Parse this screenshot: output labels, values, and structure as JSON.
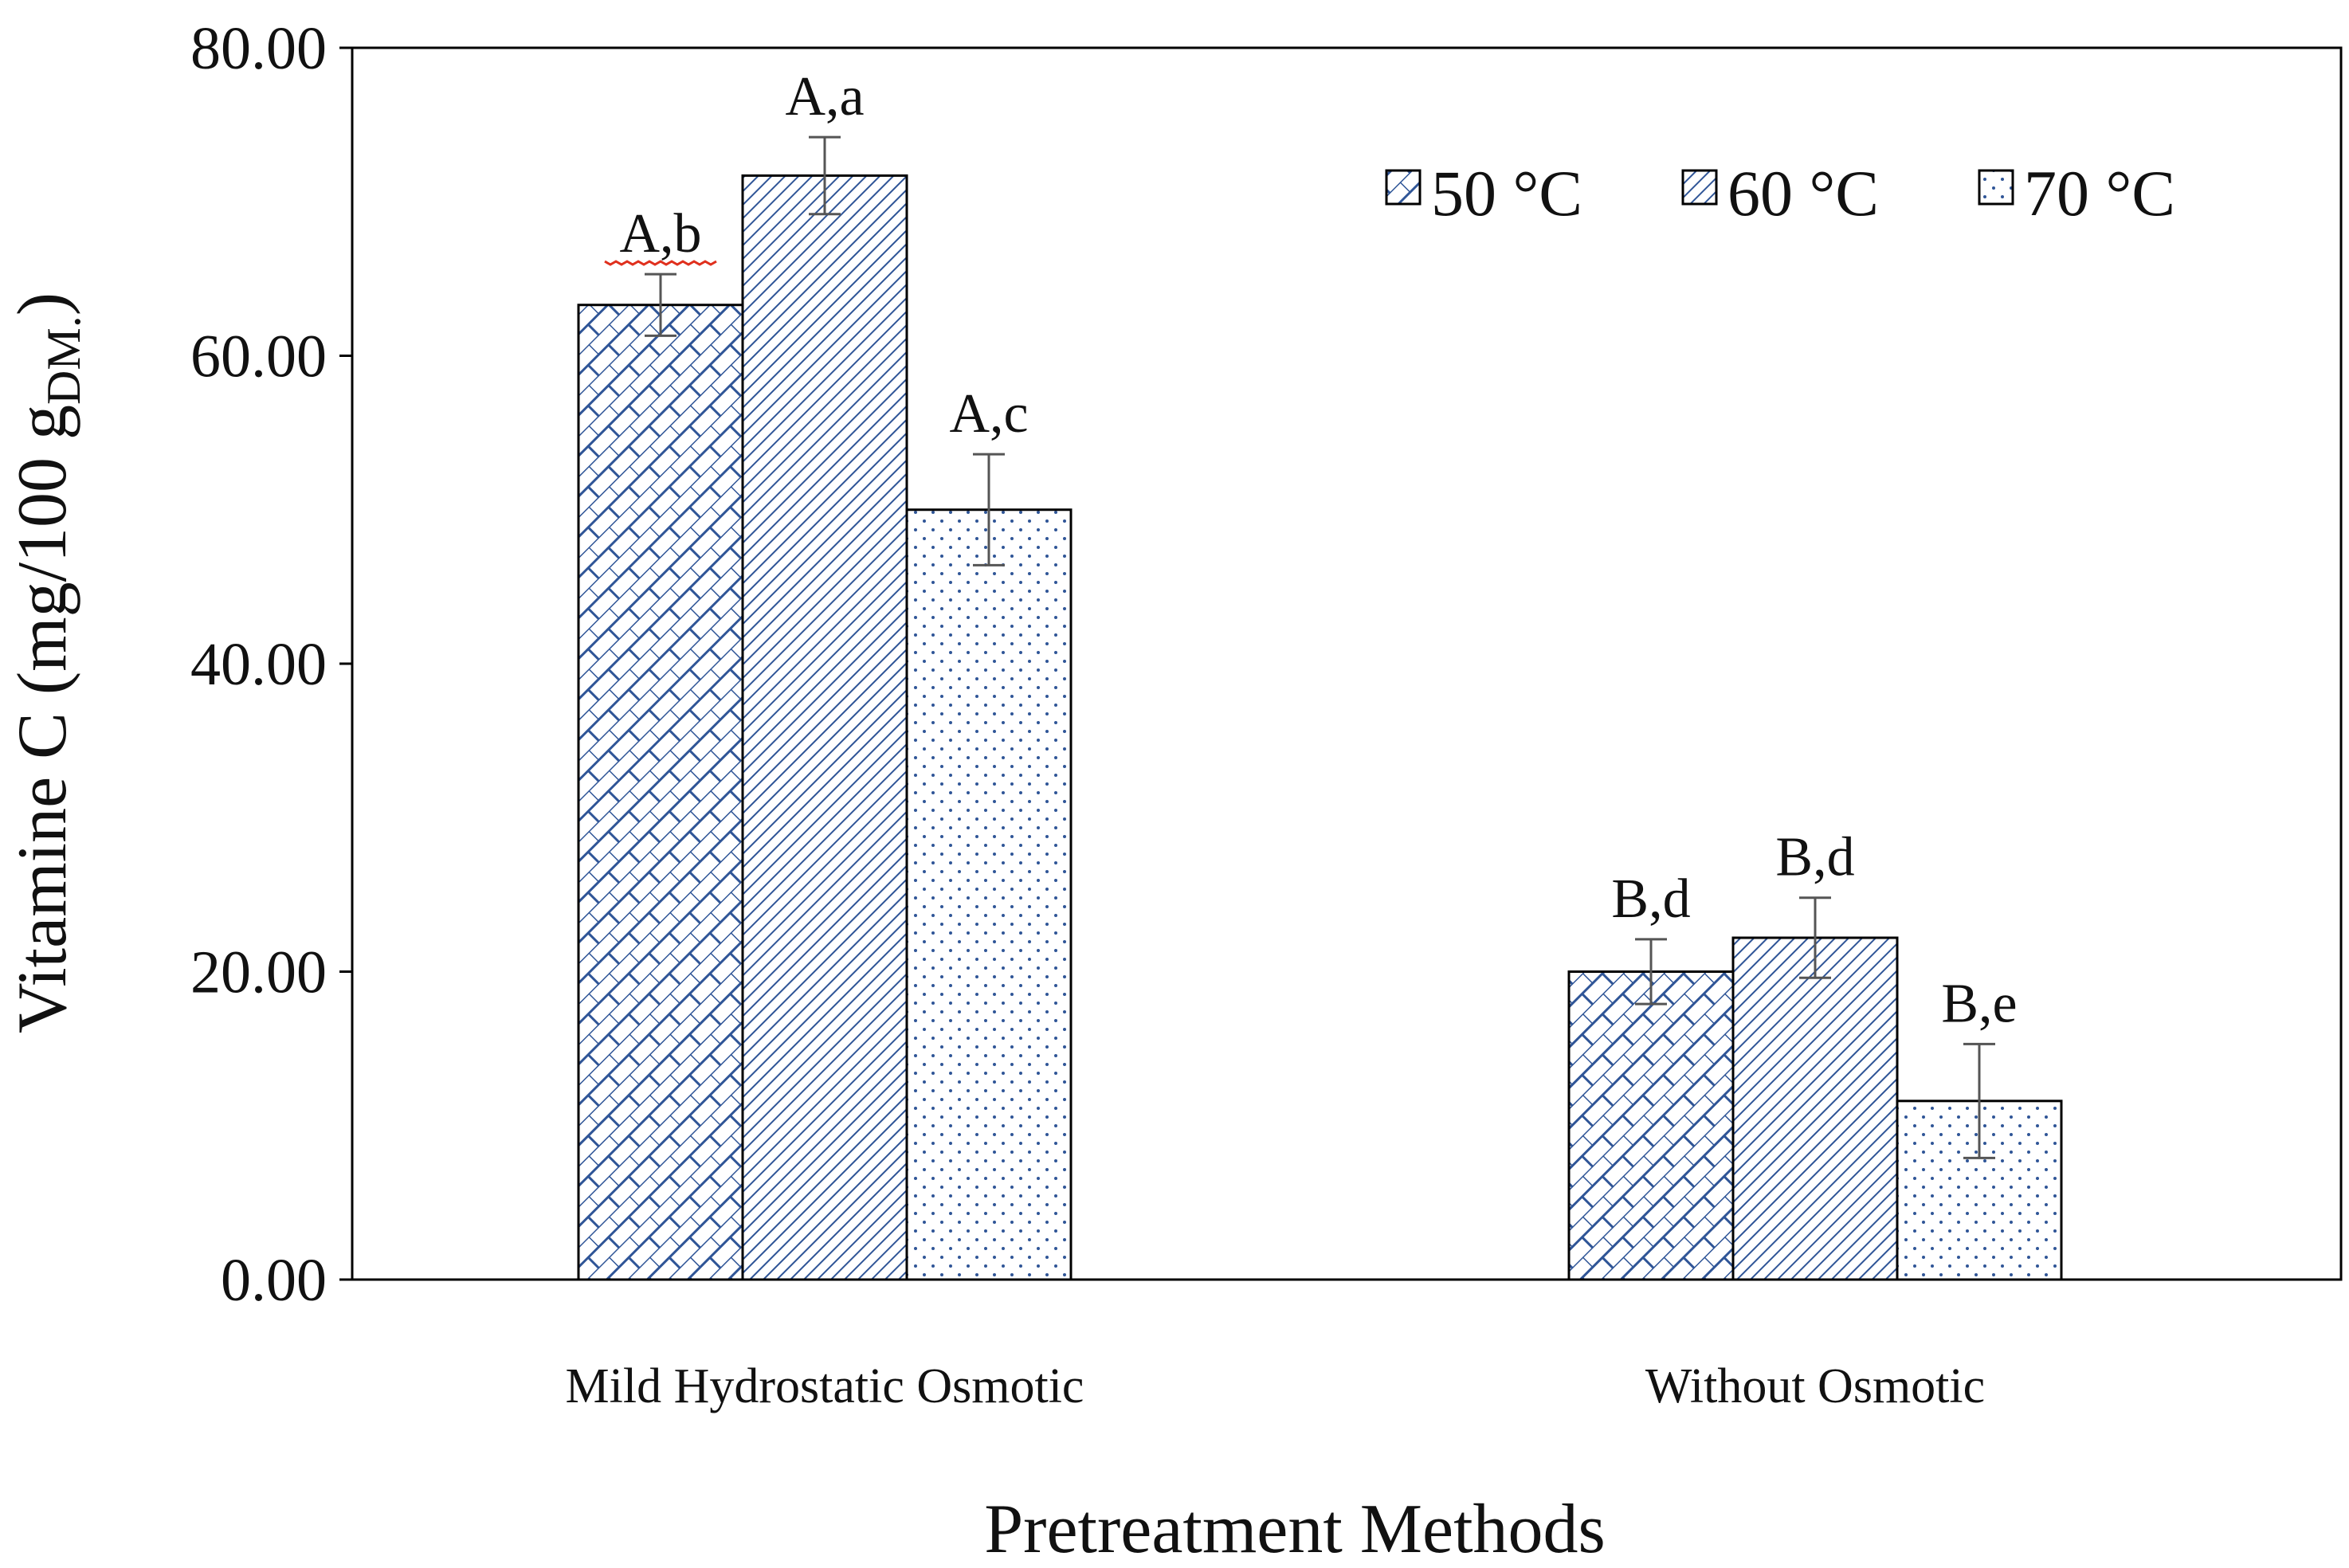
{
  "chart_data": {
    "type": "bar",
    "title": "",
    "xlabel": "Pretreatment Methods",
    "ylabel": "Vitamine C (mg/100 g",
    "ylabel_subscript": "DM.",
    "ylabel_close": ")",
    "ylim": [
      0,
      80
    ],
    "ytick_values": [
      0,
      20,
      40,
      60,
      80
    ],
    "ytick_labels": [
      "0.00",
      "20.00",
      "40.00",
      "60.00",
      "80.00"
    ],
    "categories": [
      "Mild Hydrostatic Osmotic",
      "Without Osmotic"
    ],
    "legend_position": "top-right",
    "series": [
      {
        "name": "50 °C",
        "pattern": "brick",
        "values": [
          63.3,
          20.0
        ],
        "errors": [
          2.0,
          2.1
        ],
        "labels": [
          "A,b",
          "B,d"
        ]
      },
      {
        "name": "60 °C",
        "pattern": "diagonal",
        "values": [
          71.7,
          22.2
        ],
        "errors": [
          2.5,
          2.6
        ],
        "labels": [
          "A,a",
          "B,d"
        ]
      },
      {
        "name": "70 °C",
        "pattern": "dots",
        "values": [
          50.0,
          11.6
        ],
        "errors": [
          3.6,
          3.7
        ],
        "labels": [
          "A,c",
          "B,e"
        ]
      }
    ],
    "colors": {
      "pattern": "#2f5597",
      "axis": "#000000",
      "errorbar": "#555555",
      "annotation_squiggle": "#e0301e"
    }
  }
}
